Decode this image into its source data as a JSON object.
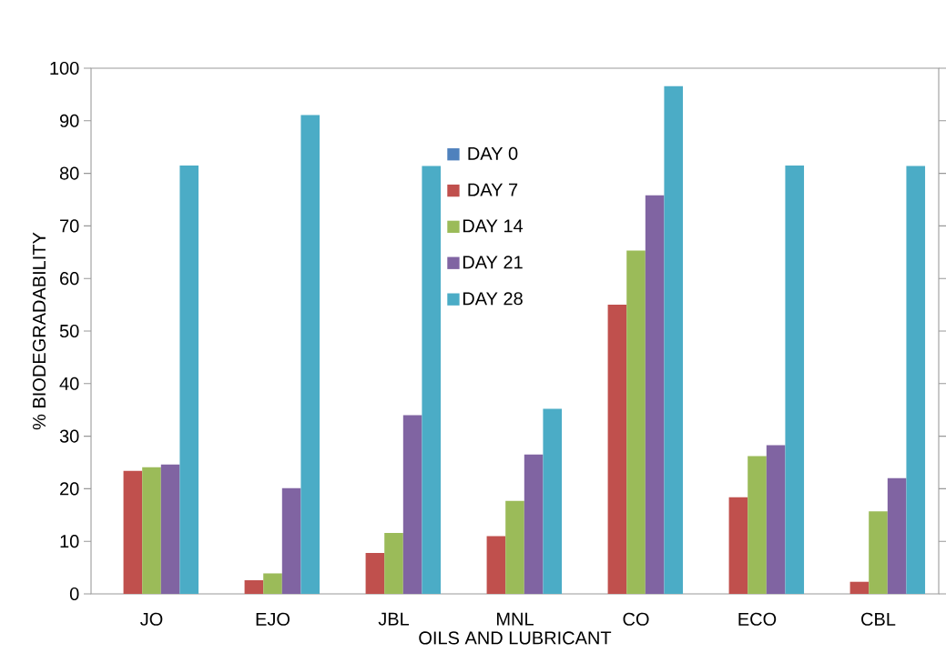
{
  "chart_data": {
    "type": "bar",
    "xlabel": "OILS AND LUBRICANT",
    "ylabel": "% BIODEGRADABILITY",
    "categories": [
      "JO",
      "EJO",
      "JBL",
      "MNL",
      "CO",
      "ECO",
      "CBL"
    ],
    "series": [
      {
        "name": "DAY 0",
        "color": "#4f81bd",
        "values": [
          0,
          0,
          0,
          0,
          0,
          0,
          0
        ]
      },
      {
        "name": "DAY 7",
        "color": "#c0504d",
        "values": [
          23.4,
          2.6,
          7.8,
          11.0,
          55.0,
          18.4,
          2.3
        ]
      },
      {
        "name": "DAY 14",
        "color": "#9bbb59",
        "values": [
          24.1,
          3.9,
          11.6,
          17.7,
          65.3,
          26.2,
          15.7
        ]
      },
      {
        "name": "DAY 21",
        "color": "#8064a2",
        "values": [
          24.6,
          20.1,
          34.0,
          26.5,
          75.8,
          28.3,
          22.0
        ]
      },
      {
        "name": "DAY 28",
        "color": "#4bacc6",
        "values": [
          81.5,
          91.1,
          81.4,
          35.2,
          96.6,
          81.5,
          81.4
        ]
      }
    ],
    "ylim": [
      0,
      100
    ],
    "yticks": [
      0,
      10,
      20,
      30,
      40,
      50,
      60,
      70,
      80,
      90,
      100
    ],
    "grid": false,
    "legend": "top"
  }
}
